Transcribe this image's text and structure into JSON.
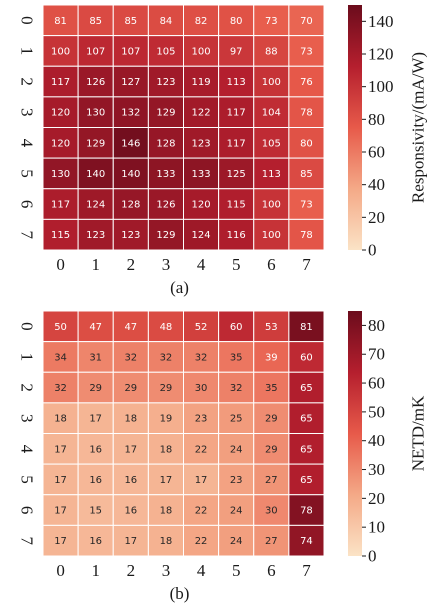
{
  "chart_data": [
    {
      "type": "heatmap",
      "caption": "(a)",
      "x_ticks": [
        "0",
        "1",
        "2",
        "3",
        "4",
        "5",
        "6",
        "7"
      ],
      "y_ticks": [
        "0",
        "1",
        "2",
        "3",
        "4",
        "5",
        "6",
        "7"
      ],
      "values": [
        [
          81,
          85,
          85,
          84,
          82,
          80,
          73,
          70
        ],
        [
          100,
          107,
          107,
          105,
          100,
          97,
          88,
          73
        ],
        [
          117,
          126,
          127,
          123,
          119,
          113,
          100,
          76
        ],
        [
          120,
          130,
          132,
          129,
          122,
          117,
          104,
          78
        ],
        [
          120,
          129,
          146,
          128,
          123,
          117,
          105,
          80
        ],
        [
          130,
          140,
          140,
          133,
          133,
          125,
          113,
          85
        ],
        [
          117,
          124,
          128,
          126,
          120,
          115,
          100,
          73
        ],
        [
          115,
          123,
          123,
          129,
          124,
          116,
          100,
          78
        ]
      ],
      "colorbar": {
        "label": "Responsivity/(mA/W)",
        "vmin": 0,
        "vmax": 150,
        "ticks": [
          0,
          20,
          40,
          60,
          80,
          100,
          120,
          140
        ],
        "colormap": [
          "#fbe3c6",
          "#f4a987",
          "#e75a4a",
          "#b51f2e",
          "#6b0c1c"
        ]
      }
    },
    {
      "type": "heatmap",
      "caption": "(b)",
      "x_ticks": [
        "0",
        "1",
        "2",
        "3",
        "4",
        "5",
        "6",
        "7"
      ],
      "y_ticks": [
        "0",
        "1",
        "2",
        "3",
        "4",
        "5",
        "6",
        "7"
      ],
      "values": [
        [
          50,
          47,
          47,
          48,
          52,
          60,
          53,
          81
        ],
        [
          34,
          31,
          32,
          32,
          32,
          35,
          39,
          60
        ],
        [
          32,
          29,
          29,
          29,
          30,
          32,
          35,
          65
        ],
        [
          18,
          17,
          18,
          19,
          23,
          25,
          29,
          65
        ],
        [
          17,
          16,
          17,
          18,
          22,
          24,
          29,
          65
        ],
        [
          17,
          16,
          16,
          17,
          17,
          23,
          27,
          65
        ],
        [
          17,
          15,
          16,
          18,
          22,
          24,
          30,
          78
        ],
        [
          17,
          16,
          17,
          18,
          22,
          24,
          27,
          74
        ]
      ],
      "colorbar": {
        "label": "NETD/mK",
        "vmin": 0,
        "vmax": 85,
        "ticks": [
          0,
          10,
          20,
          30,
          40,
          50,
          60,
          70,
          80
        ],
        "colormap": [
          "#fbe3c6",
          "#f4a987",
          "#e75a4a",
          "#b51f2e",
          "#6b0c1c"
        ]
      }
    }
  ]
}
